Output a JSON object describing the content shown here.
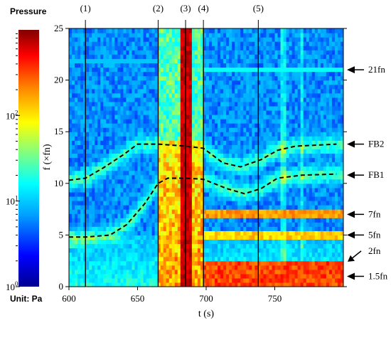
{
  "chart_data": {
    "type": "heatmap",
    "title": "",
    "xlabel": "t (s)",
    "ylabel": "f (×fn)",
    "xlim": [
      600,
      800
    ],
    "ylim": [
      0,
      25
    ],
    "x_ticks": [
      "600",
      "650",
      "700",
      "750"
    ],
    "y_ticks": [
      "0",
      "5",
      "10",
      "15",
      "20",
      "25"
    ],
    "colorbar": {
      "title": "Pressure",
      "unit_label": "Unit:  Pa",
      "scale": "log",
      "range": [
        1,
        1000
      ],
      "ticks": [
        {
          "base": "10",
          "exp": "0",
          "value": 1
        },
        {
          "base": "10",
          "exp": "1",
          "value": 10
        },
        {
          "base": "10",
          "exp": "2",
          "value": 100
        }
      ],
      "colormap": [
        "#00008f",
        "#0000ff",
        "#00a0ff",
        "#00ffff",
        "#80ff80",
        "#ffff00",
        "#ff8000",
        "#ff0000",
        "#800000"
      ]
    },
    "stage_markers": [
      {
        "label": "(1)",
        "t": 612
      },
      {
        "label": "(2)",
        "t": 665
      },
      {
        "label": "(3)",
        "t": 685
      },
      {
        "label": "(4)",
        "t": 698
      },
      {
        "label": "(5)",
        "t": 738
      }
    ],
    "frequency_labels": [
      {
        "label": "21fn",
        "f": 21
      },
      {
        "label": "FB2",
        "f": 13.8
      },
      {
        "label": "FB1",
        "f": 10.8
      },
      {
        "label": "7fn",
        "f": 7
      },
      {
        "label": "5fn",
        "f": 5
      },
      {
        "label": "2fn",
        "f": 2
      },
      {
        "label": "1.5fn",
        "f": 1.5
      }
    ],
    "dashed_curves": [
      {
        "points": [
          [
            600,
            10.3
          ],
          [
            612,
            10.5
          ],
          [
            625,
            11.5
          ],
          [
            640,
            12.8
          ],
          [
            650,
            13.8
          ],
          [
            665,
            13.8
          ],
          [
            685,
            13.6
          ],
          [
            698,
            13.4
          ],
          [
            712,
            12.0
          ],
          [
            725,
            11.6
          ],
          [
            740,
            12.3
          ],
          [
            752,
            13.2
          ],
          [
            765,
            13.6
          ],
          [
            795,
            13.8
          ]
        ]
      },
      {
        "points": [
          [
            600,
            4.8
          ],
          [
            612,
            4.8
          ],
          [
            630,
            5.0
          ],
          [
            642,
            6.0
          ],
          [
            655,
            8.0
          ],
          [
            665,
            10.0
          ],
          [
            672,
            10.5
          ],
          [
            685,
            10.5
          ],
          [
            698,
            10.4
          ],
          [
            715,
            9.5
          ],
          [
            728,
            9.0
          ],
          [
            740,
            9.5
          ],
          [
            752,
            10.5
          ],
          [
            770,
            10.8
          ],
          [
            795,
            10.9
          ]
        ]
      }
    ]
  }
}
